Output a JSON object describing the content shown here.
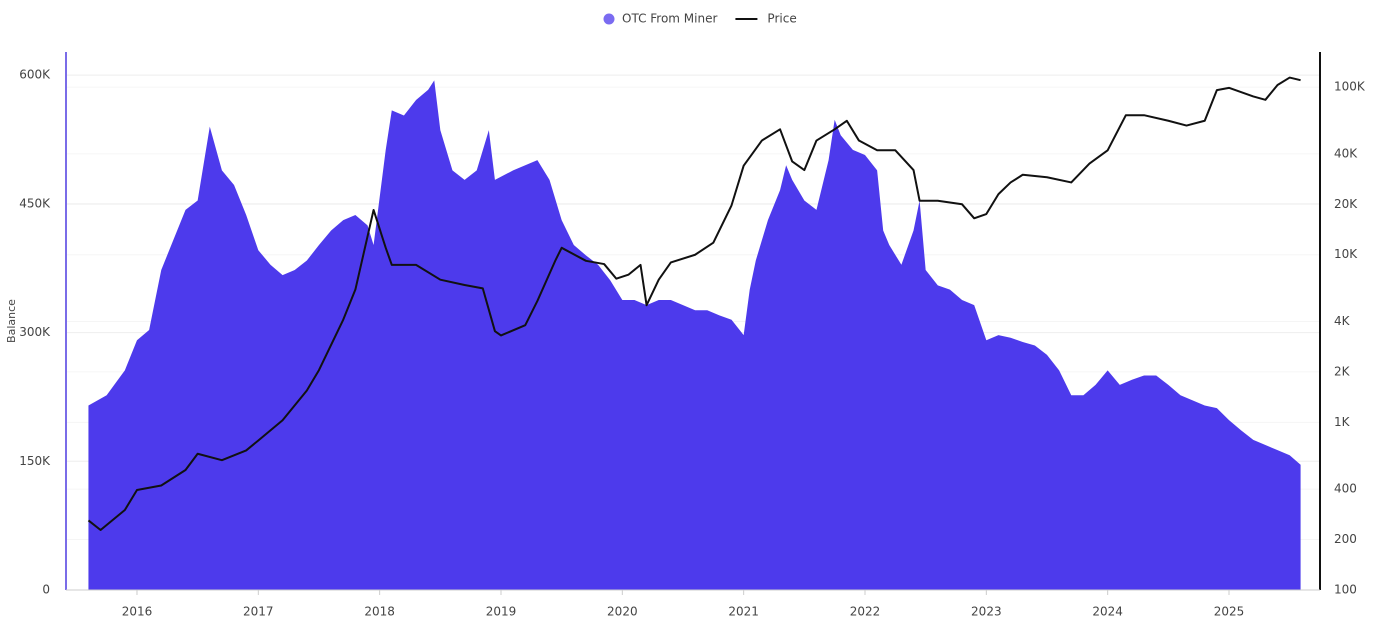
{
  "chart_data": {
    "type": "area-line",
    "y_label": "Balance",
    "legend": "top",
    "grid": true,
    "xlim": [
      2015.415,
      2025.75
    ],
    "xticks": [
      2016,
      2017,
      2018,
      2019,
      2020,
      2021,
      2022,
      2023,
      2024,
      2025
    ],
    "ylim": [
      0,
      627000
    ],
    "yticks": [
      0,
      {
        "value": 150000,
        "label": "150K"
      },
      {
        "value": 300000,
        "label": "300K"
      },
      {
        "value": 450000,
        "label": "450K"
      },
      {
        "value": 600000,
        "label": "600K"
      }
    ],
    "y2lim": [
      100,
      162000
    ],
    "y2log": true,
    "y2ticks": [
      100,
      200,
      400,
      {
        "value": 1000,
        "label": "1K"
      },
      {
        "value": 2000,
        "label": "2K"
      },
      {
        "value": 4000,
        "label": "4K"
      },
      {
        "value": 10000,
        "label": "10K"
      },
      {
        "value": 20000,
        "label": "20K"
      },
      {
        "value": 40000,
        "label": "40K"
      },
      {
        "value": 100000,
        "label": "100K"
      }
    ],
    "series": [
      {
        "name": "OTC From Miner",
        "color": "#4d3aec",
        "kind": "area",
        "x": [
          2015.6,
          2015.75,
          2015.9,
          2016.0,
          2016.1,
          2016.2,
          2016.3,
          2016.4,
          2016.5,
          2016.6,
          2016.7,
          2016.8,
          2016.9,
          2017.0,
          2017.1,
          2017.2,
          2017.3,
          2017.4,
          2017.5,
          2017.6,
          2017.7,
          2017.8,
          2017.9,
          2017.95,
          2018.05,
          2018.1,
          2018.2,
          2018.3,
          2018.4,
          2018.45,
          2018.5,
          2018.6,
          2018.7,
          2018.8,
          2018.9,
          2018.95,
          2019.1,
          2019.2,
          2019.3,
          2019.4,
          2019.5,
          2019.6,
          2019.7,
          2019.8,
          2019.9,
          2020.0,
          2020.1,
          2020.2,
          2020.3,
          2020.4,
          2020.5,
          2020.6,
          2020.7,
          2020.8,
          2020.9,
          2021.0,
          2021.05,
          2021.1,
          2021.2,
          2021.3,
          2021.35,
          2021.4,
          2021.5,
          2021.6,
          2021.7,
          2021.75,
          2021.8,
          2021.9,
          2022.0,
          2022.1,
          2022.15,
          2022.2,
          2022.3,
          2022.4,
          2022.45,
          2022.5,
          2022.6,
          2022.7,
          2022.8,
          2022.9,
          2023.0,
          2023.1,
          2023.2,
          2023.3,
          2023.4,
          2023.5,
          2023.6,
          2023.7,
          2023.8,
          2023.9,
          2024.0,
          2024.1,
          2024.2,
          2024.3,
          2024.4,
          2024.5,
          2024.6,
          2024.7,
          2024.8,
          2024.9,
          2025.0,
          2025.1,
          2025.2,
          2025.3,
          2025.4,
          2025.5,
          2025.59
        ],
        "values": [
          215000,
          227000,
          256000,
          291000,
          303000,
          373000,
          408000,
          443000,
          454000,
          540000,
          489000,
          472000,
          437000,
          396000,
          379000,
          367000,
          373000,
          384000,
          402000,
          419000,
          431000,
          437000,
          425000,
          402000,
          513000,
          559000,
          553000,
          571000,
          583000,
          594000,
          536000,
          489000,
          478000,
          489000,
          536000,
          478000,
          489000,
          495000,
          501000,
          478000,
          431000,
          402000,
          390000,
          379000,
          361000,
          338000,
          338000,
          332000,
          338000,
          338000,
          332000,
          326000,
          326000,
          320000,
          315000,
          297000,
          350000,
          384000,
          431000,
          466000,
          495000,
          478000,
          454000,
          443000,
          501000,
          548000,
          530000,
          513000,
          507000,
          489000,
          419000,
          402000,
          379000,
          419000,
          454000,
          373000,
          355000,
          350000,
          338000,
          332000,
          291000,
          297000,
          294000,
          289000,
          285000,
          274000,
          256000,
          227000,
          227000,
          239000,
          256000,
          239000,
          245000,
          250000,
          250000,
          239000,
          227000,
          221000,
          215000,
          212000,
          198000,
          186000,
          175000,
          169000,
          163000,
          157000,
          146000
        ]
      },
      {
        "name": "Price",
        "color": "#111111",
        "kind": "line",
        "axis": "y2",
        "x": [
          2015.6,
          2015.7,
          2015.9,
          2016.0,
          2016.2,
          2016.4,
          2016.5,
          2016.7,
          2016.9,
          2017.0,
          2017.2,
          2017.4,
          2017.5,
          2017.7,
          2017.8,
          2017.95,
          2018.05,
          2018.1,
          2018.3,
          2018.5,
          2018.7,
          2018.85,
          2018.95,
          2019.0,
          2019.2,
          2019.3,
          2019.45,
          2019.5,
          2019.7,
          2019.85,
          2019.95,
          2020.05,
          2020.15,
          2020.2,
          2020.3,
          2020.4,
          2020.6,
          2020.75,
          2020.9,
          2021.0,
          2021.15,
          2021.3,
          2021.4,
          2021.5,
          2021.6,
          2021.75,
          2021.85,
          2021.95,
          2022.1,
          2022.25,
          2022.4,
          2022.45,
          2022.6,
          2022.8,
          2022.9,
          2023.0,
          2023.1,
          2023.2,
          2023.3,
          2023.5,
          2023.7,
          2023.85,
          2024.0,
          2024.15,
          2024.3,
          2024.5,
          2024.65,
          2024.8,
          2024.9,
          2025.0,
          2025.2,
          2025.3,
          2025.4,
          2025.5,
          2025.59
        ],
        "values": [
          260,
          228,
          300,
          395,
          420,
          520,
          650,
          595,
          680,
          780,
          1030,
          1550,
          2050,
          4100,
          6200,
          18500,
          11000,
          8700,
          8700,
          7100,
          6600,
          6300,
          3500,
          3300,
          3800,
          5300,
          9300,
          11000,
          9200,
          8800,
          7200,
          7600,
          8700,
          5000,
          7100,
          9000,
          10000,
          11800,
          19700,
          34000,
          48000,
          56000,
          36000,
          32000,
          48000,
          56000,
          63000,
          48000,
          42000,
          42000,
          32000,
          21000,
          21000,
          20000,
          16500,
          17500,
          23000,
          27000,
          30000,
          29000,
          27000,
          35000,
          42000,
          68000,
          68000,
          63000,
          59000,
          63000,
          96000,
          99000,
          88000,
          84000,
          103000,
          114000,
          110000
        ]
      }
    ]
  }
}
